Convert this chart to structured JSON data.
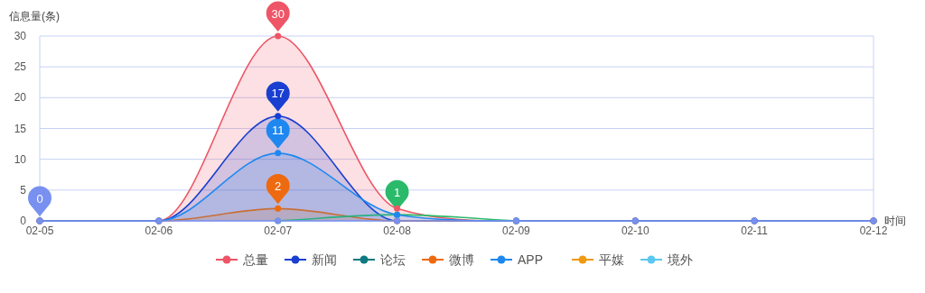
{
  "chart_data": {
    "type": "line",
    "ylabel": "信息量(条)",
    "xlabel": "时间",
    "categories": [
      "02-05",
      "02-06",
      "02-07",
      "02-08",
      "02-09",
      "02-10",
      "02-11",
      "02-12"
    ],
    "series": [
      {
        "name": "总量",
        "color": "#ee5566",
        "type": "area",
        "values": [
          0,
          0,
          30,
          2,
          0,
          0,
          0,
          0
        ]
      },
      {
        "name": "新闻",
        "color": "#1a3fd0",
        "type": "area",
        "values": [
          0,
          0,
          17,
          0,
          0,
          0,
          0,
          0
        ]
      },
      {
        "name": "论坛",
        "color": "#0e7a80",
        "values": [
          null,
          null,
          null,
          null,
          null,
          null,
          null,
          null
        ]
      },
      {
        "name": "微博",
        "color": "#ee6a10",
        "type": "area",
        "values": [
          0,
          0,
          2,
          0,
          0,
          0,
          0,
          0
        ]
      },
      {
        "color": "#2bba6a",
        "values": [
          null,
          null,
          0,
          1,
          0,
          null,
          null,
          null
        ]
      },
      {
        "name": "APP",
        "color": "#1e88f0",
        "type": "area",
        "values": [
          0,
          0,
          11,
          1,
          0,
          0,
          0,
          0
        ]
      },
      {
        "name": "平媒",
        "color": "#f09a10",
        "values": [
          null,
          null,
          null,
          null,
          null,
          null,
          null,
          null
        ]
      },
      {
        "name": "境外",
        "color": "#5ac8f0",
        "values": [
          null,
          null,
          null,
          null,
          null,
          null,
          null,
          null
        ]
      },
      {
        "color": "#7890f0",
        "values": [
          0,
          0,
          0,
          0,
          0,
          0,
          0,
          0
        ]
      }
    ],
    "annotations": [
      {
        "text": "30",
        "x": "02-07",
        "y": 30
      },
      {
        "text": "17",
        "x": "02-07",
        "y": 17
      },
      {
        "text": "11",
        "x": "02-07",
        "y": 11
      },
      {
        "text": "2",
        "x": "02-07",
        "y": 2
      },
      {
        "text": "1",
        "x": "02-08",
        "y": 1
      },
      {
        "text": "0",
        "x": "02-05",
        "y": 0
      }
    ],
    "ylim": [
      0,
      30
    ],
    "yticks": [
      0,
      5,
      10,
      15,
      20,
      25,
      30
    ],
    "grid": "y",
    "legend": "bottom",
    "marker": "circle",
    "line_style": "solid"
  }
}
